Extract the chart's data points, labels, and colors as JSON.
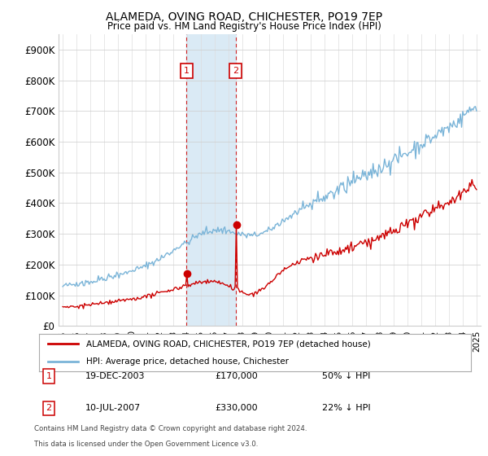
{
  "title": "ALAMEDA, OVING ROAD, CHICHESTER, PO19 7EP",
  "subtitle": "Price paid vs. HM Land Registry's House Price Index (HPI)",
  "legend_line1": "ALAMEDA, OVING ROAD, CHICHESTER, PO19 7EP (detached house)",
  "legend_line2": "HPI: Average price, detached house, Chichester",
  "transaction1_date": "19-DEC-2003",
  "transaction1_price": "£170,000",
  "transaction1_hpi": "50% ↓ HPI",
  "transaction2_date": "10-JUL-2007",
  "transaction2_price": "£330,000",
  "transaction2_hpi": "22% ↓ HPI",
  "footnote1": "Contains HM Land Registry data © Crown copyright and database right 2024.",
  "footnote2": "This data is licensed under the Open Government Licence v3.0.",
  "hpi_color": "#7ab4d8",
  "price_color": "#cc0000",
  "highlight_color": "#daeaf5",
  "marker_box_color": "#cc0000",
  "ylim": [
    0,
    950000
  ],
  "yticks": [
    0,
    100000,
    200000,
    300000,
    400000,
    500000,
    600000,
    700000,
    800000,
    900000
  ],
  "ytick_labels": [
    "£0",
    "£100K",
    "£200K",
    "£300K",
    "£400K",
    "£500K",
    "£600K",
    "£700K",
    "£800K",
    "£900K"
  ],
  "year_start": 1995,
  "year_end": 2025,
  "transaction1_year": 2003.97,
  "transaction2_year": 2007.55,
  "transaction1_price_val": 170000,
  "transaction2_price_val": 330000
}
